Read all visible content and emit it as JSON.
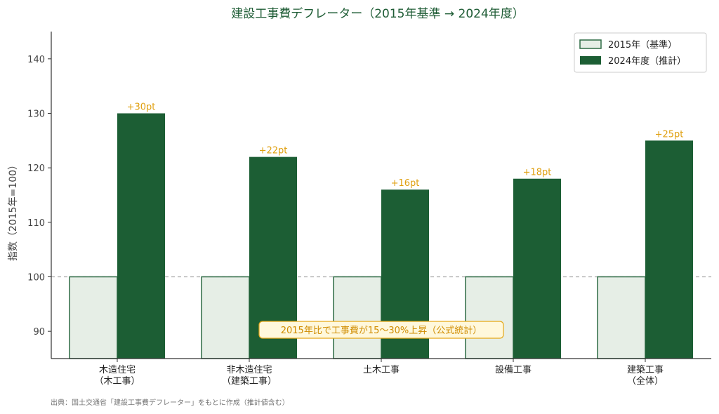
{
  "chart_data": {
    "type": "bar",
    "title": "建設工事費デフレーター（2015年基準 → 2024年度）",
    "ylabel": "指数（2015年=100）",
    "ylim": [
      85,
      145
    ],
    "yticks": [
      90,
      100,
      110,
      120,
      130,
      140
    ],
    "categories": [
      [
        "木造住宅",
        "（木工事）"
      ],
      [
        "非木造住宅",
        "（建築工事）"
      ],
      [
        "土木工事"
      ],
      [
        "設備工事"
      ],
      [
        "建築工事",
        "（全体）"
      ]
    ],
    "series": [
      {
        "name": "2015年（基準）",
        "values": [
          100,
          100,
          100,
          100,
          100
        ]
      },
      {
        "name": "2024年度（推計）",
        "values": [
          130,
          122,
          116,
          118,
          125
        ]
      }
    ],
    "data_labels": [
      "+30pt",
      "+22pt",
      "+16pt",
      "+18pt",
      "+25pt"
    ],
    "reference_line": 100,
    "annotation": "2015年比で工事費が15〜30%上昇（公式統計）",
    "legend_position": "top-right",
    "colors": {
      "base_fill": "#e6eee6",
      "base_stroke": "#2e6b45",
      "current_fill": "#1c5e34",
      "label": "#e0a010",
      "title": "#1e5c35",
      "note_bg": "#fff8dc",
      "note_border": "#e6a817"
    }
  },
  "source": "出典：国土交通省「建設工事費デフレーター」をもとに作成（推計値含む）"
}
